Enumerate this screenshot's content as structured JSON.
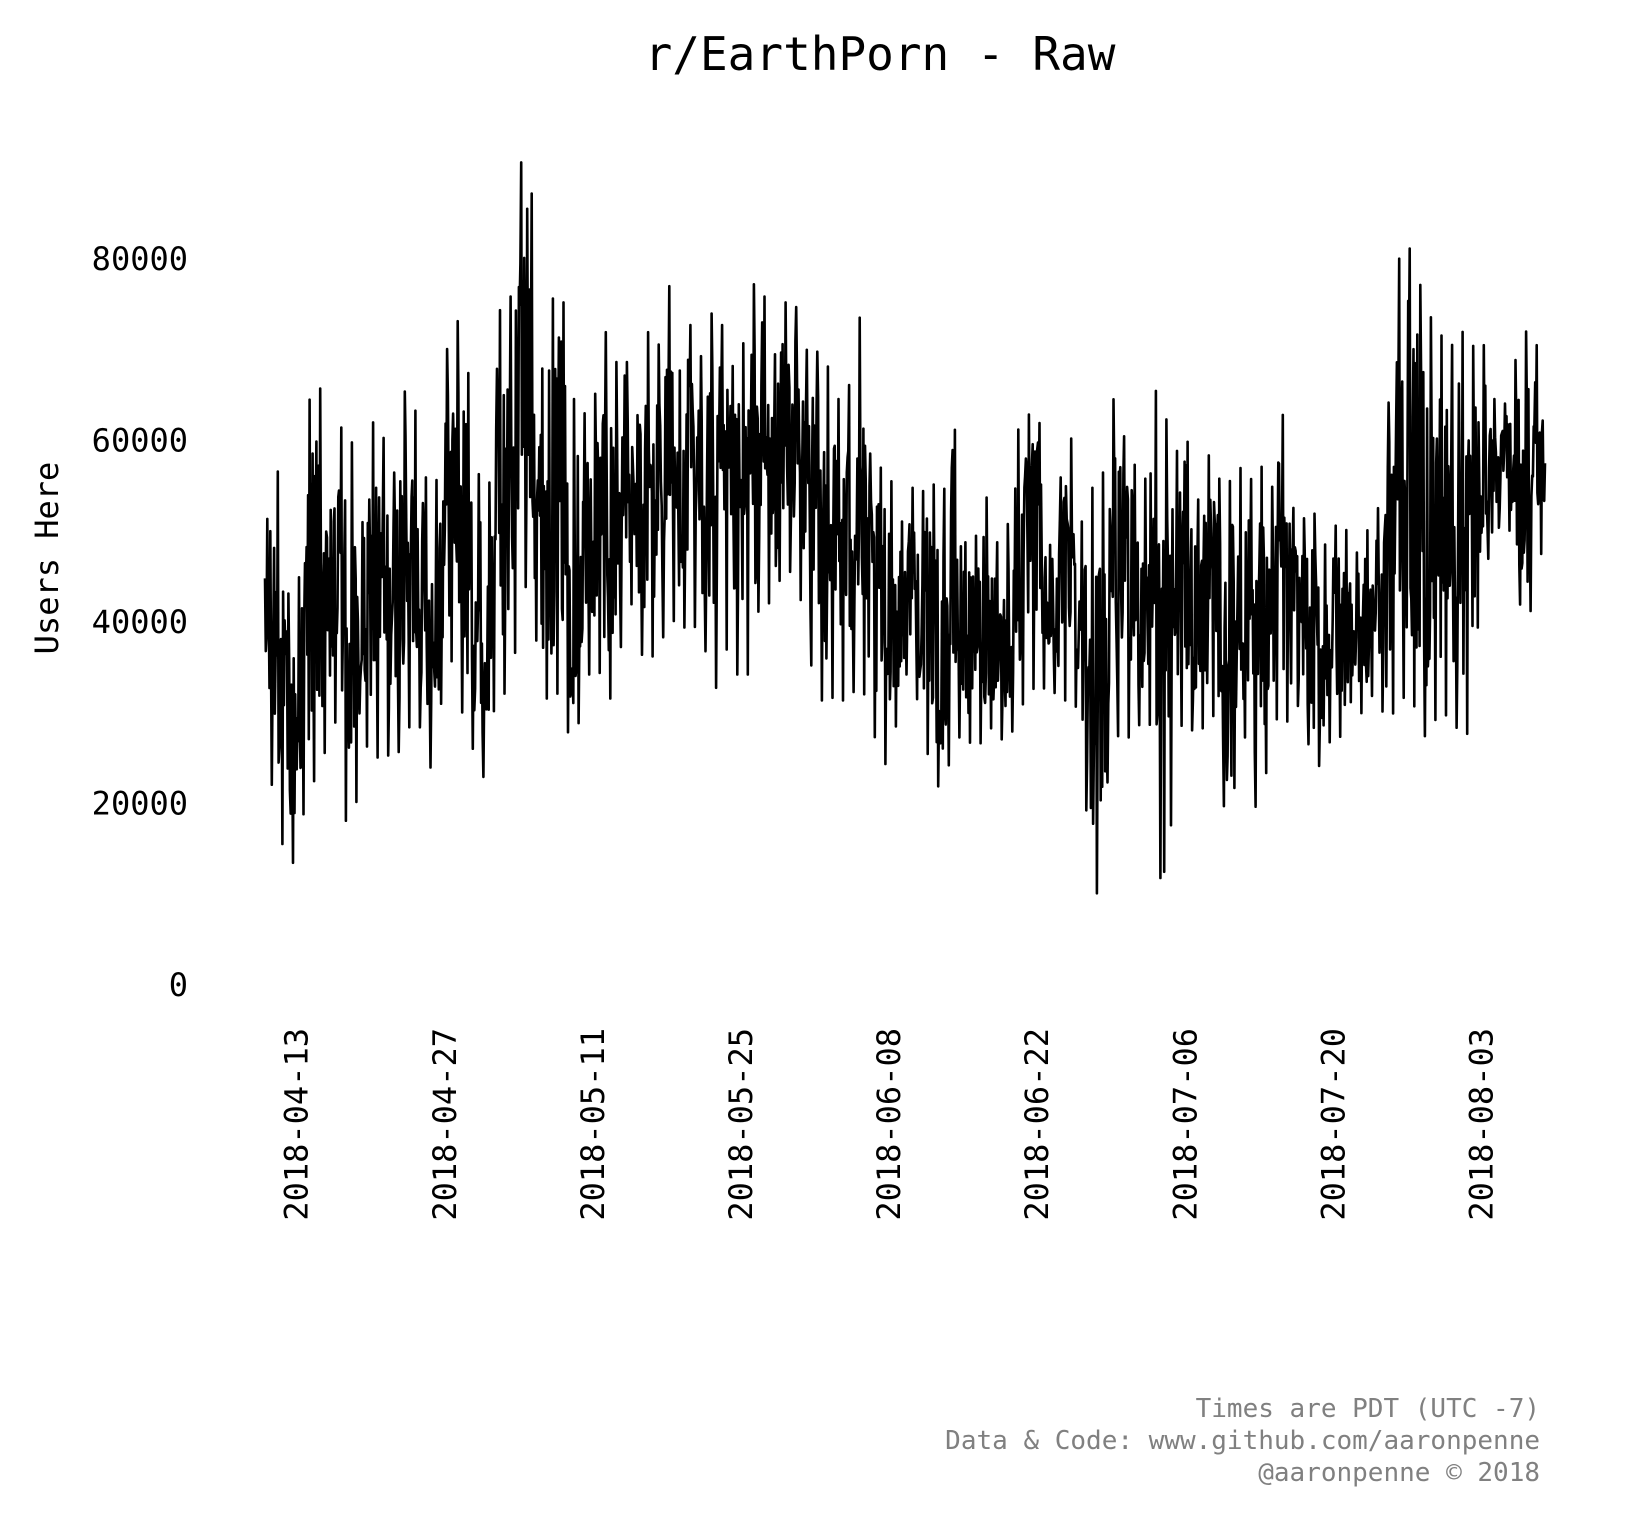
{
  "chart_data": {
    "type": "line",
    "title": "r/EarthPorn - Raw",
    "xlabel": "",
    "ylabel": "Users Here",
    "x_range": [
      "2018-04-10",
      "2018-08-09"
    ],
    "ylim": [
      0,
      95000
    ],
    "y_ticks": [
      "0",
      "20000",
      "40000",
      "60000",
      "80000"
    ],
    "x_ticks": [
      "2018-04-13",
      "2018-04-27",
      "2018-05-11",
      "2018-05-25",
      "2018-06-08",
      "2018-06-22",
      "2018-07-06",
      "2018-07-20",
      "2018-08-03"
    ],
    "grid": false,
    "legend": "none",
    "line_color": "#000000",
    "series": [
      {
        "x": [
          "2018-04-10",
          "2018-04-11",
          "2018-04-12",
          "2018-04-13",
          "2018-04-14",
          "2018-04-15",
          "2018-04-16",
          "2018-04-17",
          "2018-04-18",
          "2018-04-19",
          "2018-04-20",
          "2018-04-21",
          "2018-04-22",
          "2018-04-23",
          "2018-04-24",
          "2018-04-25",
          "2018-04-26",
          "2018-04-27",
          "2018-04-28",
          "2018-04-29",
          "2018-04-30",
          "2018-05-01",
          "2018-05-02",
          "2018-05-03",
          "2018-05-04",
          "2018-05-05",
          "2018-05-06",
          "2018-05-07",
          "2018-05-08",
          "2018-05-09",
          "2018-05-10",
          "2018-05-11",
          "2018-05-12",
          "2018-05-13",
          "2018-05-14",
          "2018-05-15",
          "2018-05-16",
          "2018-05-17",
          "2018-05-18",
          "2018-05-19",
          "2018-05-20",
          "2018-05-21",
          "2018-05-22",
          "2018-05-23",
          "2018-05-24",
          "2018-05-25",
          "2018-05-26",
          "2018-05-27",
          "2018-05-28",
          "2018-05-29",
          "2018-05-30",
          "2018-05-31",
          "2018-06-01",
          "2018-06-02",
          "2018-06-03",
          "2018-06-04",
          "2018-06-05",
          "2018-06-06",
          "2018-06-07",
          "2018-06-08",
          "2018-06-09",
          "2018-06-10",
          "2018-06-11",
          "2018-06-12",
          "2018-06-13",
          "2018-06-14",
          "2018-06-15",
          "2018-06-16",
          "2018-06-17",
          "2018-06-18",
          "2018-06-19",
          "2018-06-20",
          "2018-06-21",
          "2018-06-22",
          "2018-06-23",
          "2018-06-24",
          "2018-06-25",
          "2018-06-26",
          "2018-06-27",
          "2018-06-28",
          "2018-06-29",
          "2018-06-30",
          "2018-07-01",
          "2018-07-02",
          "2018-07-03",
          "2018-07-04",
          "2018-07-05",
          "2018-07-06",
          "2018-07-07",
          "2018-07-08",
          "2018-07-09",
          "2018-07-10",
          "2018-07-11",
          "2018-07-12",
          "2018-07-13",
          "2018-07-14",
          "2018-07-15",
          "2018-07-16",
          "2018-07-17",
          "2018-07-18",
          "2018-07-19",
          "2018-07-20",
          "2018-07-21",
          "2018-07-22",
          "2018-07-23",
          "2018-07-24",
          "2018-07-25",
          "2018-07-26",
          "2018-07-27",
          "2018-07-28",
          "2018-07-29",
          "2018-07-30",
          "2018-07-31",
          "2018-08-01",
          "2018-08-02",
          "2018-08-03",
          "2018-08-04",
          "2018-08-05",
          "2018-08-06",
          "2018-08-07",
          "2018-08-08",
          "2018-08-09"
        ],
        "low": [
          24000,
          21000,
          12500,
          14000,
          21500,
          23000,
          27000,
          30000,
          11500,
          25000,
          27000,
          24000,
          26000,
          25500,
          30000,
          27500,
          22000,
          36000,
          35500,
          27000,
          25500,
          21500,
          35000,
          30500,
          40000,
          46000,
          33500,
          30500,
          33000,
          25000,
          31000,
          36000,
          33500,
          30500,
          41000,
          42500,
          33000,
          38000,
          38500,
          41000,
          38500,
          40000,
          35000,
          31500,
          40000,
          31000,
          36000,
          44000,
          41000,
          46500,
          45000,
          41000,
          32000,
          31000,
          32000,
          31000,
          33000,
          31500,
          25000,
          24000,
          31000,
          36000,
          29000,
          23500,
          21000,
          26000,
          28000,
          26000,
          27000,
          29000,
          26000,
          29000,
          32000,
          33000,
          32500,
          32000,
          31000,
          30500,
          13000,
          8500,
          30000,
          26000,
          28000,
          29000,
          28500,
          2500,
          26000,
          30000,
          27000,
          29000,
          30000,
          14000,
          26000,
          28000,
          15000,
          28000,
          30000,
          28500,
          32000,
          23500,
          24500,
          28000,
          27000,
          33500,
          28000,
          34000,
          28000,
          31000,
          32000,
          30000,
          26000,
          31000,
          29000,
          28000,
          27500,
          46000,
          47500,
          52000,
          49000,
          38000,
          43000,
          50000
        ],
        "high": [
          49000,
          60000,
          44000,
          40000,
          63000,
          70000,
          50000,
          61000,
          63000,
          48000,
          62000,
          62000,
          54000,
          65500,
          65000,
          57000,
          52000,
          69000,
          74000,
          70000,
          58000,
          50000,
          75000,
          72000,
          90000,
          93000,
          66000,
          75000,
          78000,
          65000,
          63000,
          63000,
          73000,
          68000,
          71000,
          60000,
          73000,
          68000,
          80000,
          66000,
          74000,
          68000,
          74000,
          74000,
          68000,
          69000,
          77000,
          78000,
          68000,
          75000,
          76000,
          70000,
          70000,
          69000,
          65000,
          63000,
          77500,
          59000,
          57000,
          57000,
          50000,
          55000,
          54000,
          56000,
          52000,
          64500,
          49000,
          48000,
          55000,
          49000,
          48000,
          61000,
          62000,
          66000,
          47000,
          54000,
          63000,
          50000,
          55000,
          54000,
          65500,
          61000,
          58500,
          53000,
          66000,
          63500,
          58000,
          62000,
          52000,
          59000,
          56000,
          55000,
          57500,
          55000,
          58500,
          52000,
          65500,
          53000,
          51000,
          53000,
          48000,
          50500,
          51000,
          47000,
          50000,
          50500,
          60000,
          79500,
          82000,
          78000,
          74000,
          72000,
          70000,
          72500,
          70000,
          72000,
          65000,
          63000,
          68000,
          72000,
          72000,
          65000
        ]
      }
    ]
  },
  "footer": {
    "line1": "Times are PDT (UTC -7)",
    "line2": "Data & Code: www.github.com/aaronpenne",
    "line3": "@aaronpenne © 2018"
  }
}
